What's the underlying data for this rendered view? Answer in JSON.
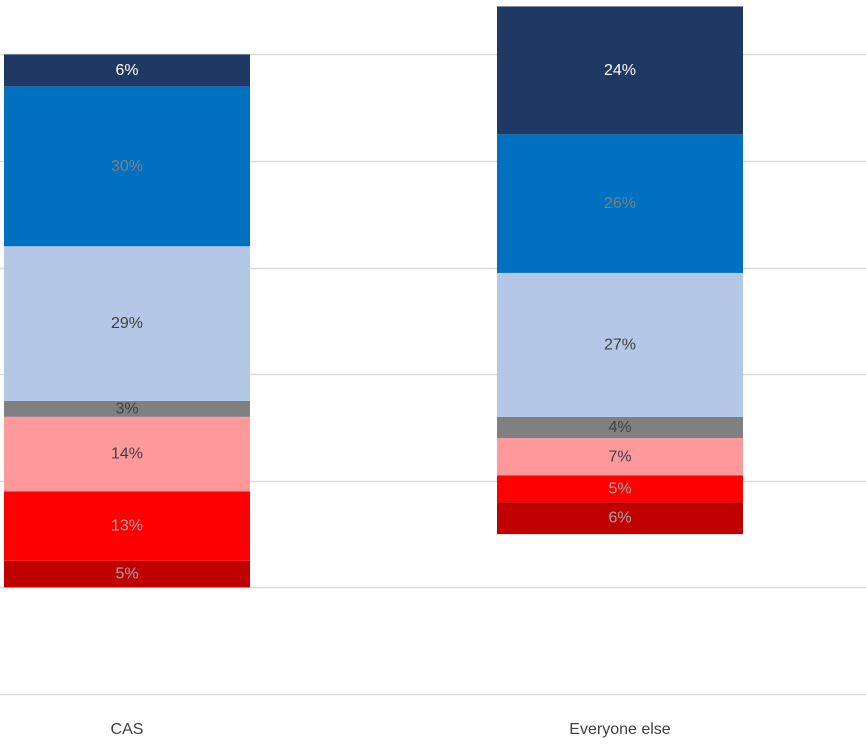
{
  "chart_data": {
    "type": "bar",
    "stacked": true,
    "categories": [
      "CAS",
      "Everyone else"
    ],
    "series": [
      {
        "values": [
          5,
          6
        ],
        "labels": [
          "5%",
          "6%"
        ],
        "color": "#C00000",
        "label_color": "#A6A6A6"
      },
      {
        "values": [
          13,
          5
        ],
        "labels": [
          "13%",
          "5%"
        ],
        "color": "#FF0000",
        "label_color": "#A6A6A6"
      },
      {
        "values": [
          14,
          7
        ],
        "labels": [
          "14%",
          "7%"
        ],
        "color": "#FF999C",
        "label_color": "#404040"
      },
      {
        "values": [
          3,
          4
        ],
        "labels": [
          "3%",
          "4%"
        ],
        "color": "#808080",
        "label_color": "#404040"
      },
      {
        "values": [
          29,
          27
        ],
        "labels": [
          "29%",
          "27%"
        ],
        "color": "#B4C7E7",
        "label_color": "#404040"
      },
      {
        "values": [
          30,
          26
        ],
        "labels": [
          "30%",
          "26%"
        ],
        "color": "#0070C0",
        "label_color": "#7F7F7F"
      },
      {
        "values": [
          6,
          24
        ],
        "labels": [
          "6%",
          "24%"
        ],
        "color": "#1F3864",
        "label_color": "#FFFFFF"
      }
    ],
    "offsets": [
      20,
      30
    ],
    "ylim": [
      0,
      130
    ],
    "gridlines": [
      0,
      20,
      40,
      60,
      80,
      100,
      120
    ],
    "grid": true,
    "gridline_color": "#D9D9D9",
    "title": "",
    "xlabel": "",
    "ylabel": ""
  }
}
